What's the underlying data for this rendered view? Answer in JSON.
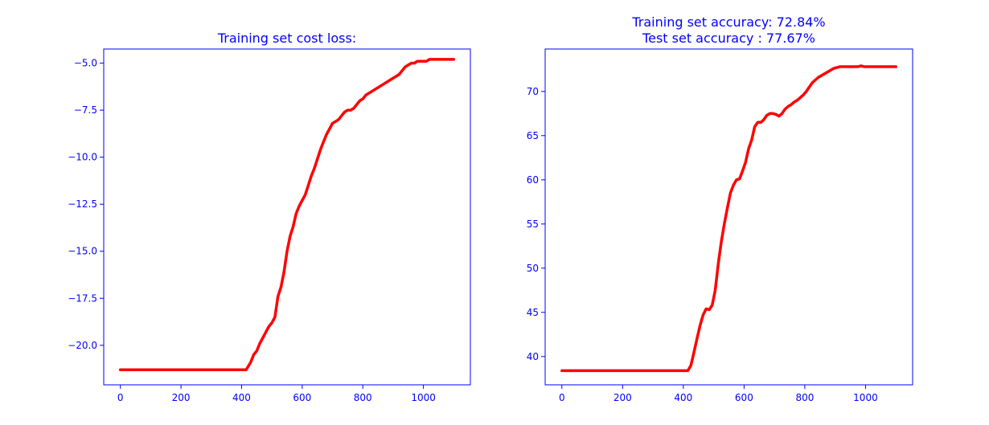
{
  "chart_data": [
    {
      "type": "line",
      "title_lines": [
        "Training set cost loss:"
      ],
      "xlabel": "",
      "ylabel": "",
      "xlim": [
        -55,
        1155
      ],
      "ylim": [
        -22.1,
        -4.25
      ],
      "x_ticks": [
        0,
        200,
        400,
        600,
        800,
        1000
      ],
      "x_tick_labels": [
        "0",
        "200",
        "400",
        "600",
        "800",
        "1000"
      ],
      "y_ticks": [
        -5.0,
        -7.5,
        -10.0,
        -12.5,
        -15.0,
        -17.5,
        -20.0
      ],
      "y_tick_labels": [
        "−5.0",
        "−7.5",
        "−10.0",
        "−12.5",
        "−15.0",
        "−17.5",
        "−20.0"
      ],
      "grid": false,
      "line_color": "#ff0000",
      "axis_color": "#0000ff",
      "series": [
        {
          "x": [
            0,
            100,
            200,
            300,
            400,
            415,
            430,
            440,
            450,
            460,
            470,
            480,
            490,
            500,
            510,
            520,
            530,
            540,
            550,
            560,
            570,
            580,
            590,
            600,
            610,
            620,
            630,
            640,
            650,
            660,
            670,
            680,
            690,
            700,
            710,
            720,
            730,
            740,
            750,
            760,
            770,
            780,
            790,
            800,
            810,
            820,
            830,
            840,
            850,
            860,
            870,
            880,
            890,
            900,
            910,
            920,
            930,
            940,
            950,
            960,
            970,
            980,
            990,
            1000,
            1010,
            1020,
            1030,
            1040,
            1050,
            1060,
            1070,
            1080,
            1090,
            1100
          ],
          "y": [
            -21.3,
            -21.3,
            -21.3,
            -21.3,
            -21.3,
            -21.3,
            -20.9,
            -20.5,
            -20.3,
            -19.9,
            -19.6,
            -19.3,
            -19.0,
            -18.8,
            -18.5,
            -17.4,
            -16.9,
            -16.1,
            -15.0,
            -14.2,
            -13.7,
            -13.0,
            -12.6,
            -12.3,
            -12.0,
            -11.5,
            -11.0,
            -10.6,
            -10.1,
            -9.6,
            -9.2,
            -8.8,
            -8.5,
            -8.2,
            -8.1,
            -8.0,
            -7.8,
            -7.6,
            -7.5,
            -7.5,
            -7.4,
            -7.2,
            -7.0,
            -6.9,
            -6.7,
            -6.6,
            -6.5,
            -6.4,
            -6.3,
            -6.2,
            -6.1,
            -6.0,
            -5.9,
            -5.8,
            -5.7,
            -5.6,
            -5.4,
            -5.2,
            -5.1,
            -5.0,
            -5.0,
            -4.9,
            -4.9,
            -4.9,
            -4.9,
            -4.8,
            -4.8,
            -4.8,
            -4.8,
            -4.8,
            -4.8,
            -4.8,
            -4.8,
            -4.8
          ]
        }
      ]
    },
    {
      "type": "line",
      "title_lines": [
        "Training set accuracy: 72.84%",
        "Test set accuracy : 77.67%"
      ],
      "xlabel": "",
      "ylabel": "",
      "xlim": [
        -55,
        1155
      ],
      "ylim": [
        36.8,
        74.8
      ],
      "x_ticks": [
        0,
        200,
        400,
        600,
        800,
        1000
      ],
      "x_tick_labels": [
        "0",
        "200",
        "400",
        "600",
        "800",
        "1000"
      ],
      "y_ticks": [
        40,
        45,
        50,
        55,
        60,
        65,
        70
      ],
      "y_tick_labels": [
        "40",
        "45",
        "50",
        "55",
        "60",
        "65",
        "70"
      ],
      "grid": false,
      "line_color": "#ff0000",
      "axis_color": "#0000ff",
      "series": [
        {
          "x": [
            0,
            100,
            200,
            300,
            400,
            415,
            425,
            435,
            445,
            455,
            465,
            475,
            485,
            495,
            505,
            515,
            525,
            535,
            545,
            555,
            565,
            575,
            585,
            595,
            605,
            615,
            625,
            635,
            645,
            655,
            665,
            675,
            685,
            695,
            705,
            715,
            725,
            735,
            745,
            755,
            765,
            775,
            785,
            795,
            805,
            815,
            825,
            835,
            845,
            855,
            865,
            875,
            885,
            895,
            905,
            915,
            925,
            935,
            945,
            955,
            965,
            975,
            985,
            995,
            1005,
            1015,
            1025,
            1035,
            1045,
            1055,
            1065,
            1075,
            1085,
            1100
          ],
          "y": [
            38.4,
            38.4,
            38.4,
            38.4,
            38.4,
            38.4,
            39.0,
            40.5,
            42.0,
            43.5,
            44.7,
            45.4,
            45.3,
            45.8,
            47.5,
            50.5,
            53.0,
            55.0,
            56.8,
            58.5,
            59.4,
            60.0,
            60.1,
            61.0,
            62.0,
            63.5,
            64.5,
            66.0,
            66.5,
            66.5,
            66.8,
            67.3,
            67.5,
            67.5,
            67.4,
            67.2,
            67.5,
            68.0,
            68.3,
            68.5,
            68.8,
            69.0,
            69.3,
            69.6,
            70.0,
            70.5,
            71.0,
            71.3,
            71.6,
            71.8,
            72.0,
            72.2,
            72.4,
            72.6,
            72.7,
            72.8,
            72.8,
            72.8,
            72.8,
            72.8,
            72.8,
            72.8,
            72.9,
            72.8,
            72.8,
            72.8,
            72.8,
            72.8,
            72.8,
            72.8,
            72.8,
            72.8,
            72.8,
            72.8
          ]
        }
      ]
    }
  ]
}
